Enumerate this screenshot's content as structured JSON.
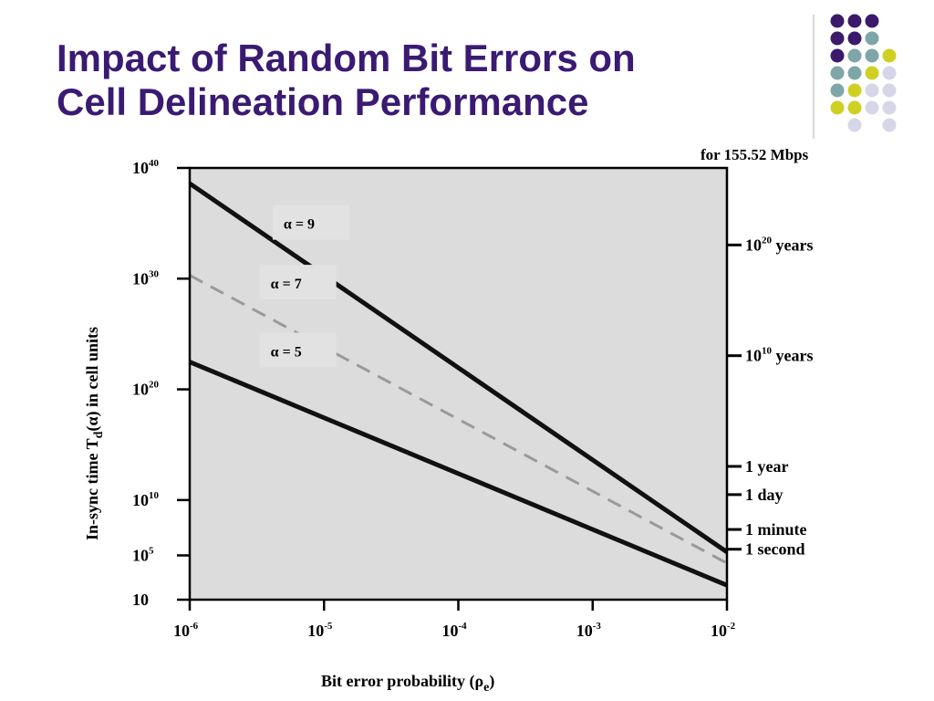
{
  "slide": {
    "title_line1": "Impact of Random Bit Errors on",
    "title_line2": "Cell Delineation Performance"
  },
  "colors": {
    "title": "#3a1a72",
    "plot_bg": "#dcdcdc",
    "solid_line": "#111111",
    "dashed_line": "#9a9a9a",
    "dot_purple": "#3b1a6c",
    "dot_teal": "#7ea6a8",
    "dot_yellow": "#cfd023",
    "dot_lavender": "#d6d6e8",
    "divider": "#b0b0b0"
  },
  "decoration": {
    "dot_grid": [
      [
        "purple",
        "purple",
        "purple",
        null
      ],
      [
        "purple",
        "purple",
        "teal",
        null
      ],
      [
        "purple",
        "teal",
        "teal",
        "yellow"
      ],
      [
        "teal",
        "teal",
        "yellow",
        "lavender"
      ],
      [
        "teal",
        "yellow",
        "lavender",
        "lavender"
      ],
      [
        "yellow",
        "yellow",
        "lavender",
        "lavender"
      ],
      [
        null,
        "lavender",
        null,
        "lavender"
      ]
    ]
  },
  "chart_data": {
    "type": "line",
    "xlabel": "Bit error probability (ρe)",
    "ylabel": "In-sync time Td(α) in cell units",
    "x_scale": "log",
    "y_scale": "log",
    "xlim": [
      1e-06,
      0.01
    ],
    "ylim": [
      10,
      1e+40
    ],
    "x_ticks": [
      {
        "value": 1e-06,
        "base": "10",
        "exp": "-6"
      },
      {
        "value": 1e-05,
        "base": "10",
        "exp": "-5"
      },
      {
        "value": 0.0001,
        "base": "10",
        "exp": "-4"
      },
      {
        "value": 0.001,
        "base": "10",
        "exp": "-3"
      },
      {
        "value": 0.01,
        "base": "10",
        "exp": "-2"
      }
    ],
    "y_ticks": [
      {
        "value": 10,
        "base": "10",
        "exp": ""
      },
      {
        "value": 100000.0,
        "base": "10",
        "exp": "5"
      },
      {
        "value": 10000000000.0,
        "base": "10",
        "exp": "10"
      },
      {
        "value": 1e+20,
        "base": "10",
        "exp": "20"
      },
      {
        "value": 1e+30,
        "base": "10",
        "exp": "30"
      },
      {
        "value": 1e+40,
        "base": "10",
        "exp": "40"
      }
    ],
    "right_axis": {
      "title": "for 155.52 Mbps",
      "ticks": [
        {
          "value": 360000.0,
          "text": "1 second",
          "exp": ""
        },
        {
          "value": 22000000.0,
          "text": "1 minute",
          "exp": ""
        },
        {
          "value": 31000000000.0,
          "text": "1 day",
          "exp": ""
        },
        {
          "value": 11000000000000.0,
          "text": "1 year",
          "exp": ""
        },
        {
          "value": 1.1e+23,
          "base": "10",
          "exp": "10",
          "text": " years"
        },
        {
          "value": 1.1e+33,
          "base": "10",
          "exp": "20",
          "text": " years"
        }
      ]
    },
    "series": [
      {
        "name": "α = 9",
        "style": "solid",
        "x": [
          1e-06,
          0.01
        ],
        "y": [
          4e+38,
          200000.0
        ]
      },
      {
        "name": "α = 7",
        "style": "dashed",
        "x": [
          1e-06,
          0.01
        ],
        "y": [
          2e+30,
          20000.0
        ]
      },
      {
        "name": "α = 5",
        "style": "solid",
        "x": [
          1e-06,
          0.01
        ],
        "y": [
          3e+22,
          200.0
        ]
      }
    ],
    "annotations": [
      {
        "series": "α = 9",
        "greek": "α",
        "rest": " = 9",
        "at": [
          5e-06,
          1e+35
        ]
      },
      {
        "series": "α = 7",
        "greek": "α",
        "rest": " = 7",
        "at": [
          4e-06,
          4e+29
        ]
      },
      {
        "series": "α = 5",
        "greek": "α",
        "rest": " = 5",
        "at": [
          4e-06,
          3e+23
        ]
      }
    ]
  }
}
